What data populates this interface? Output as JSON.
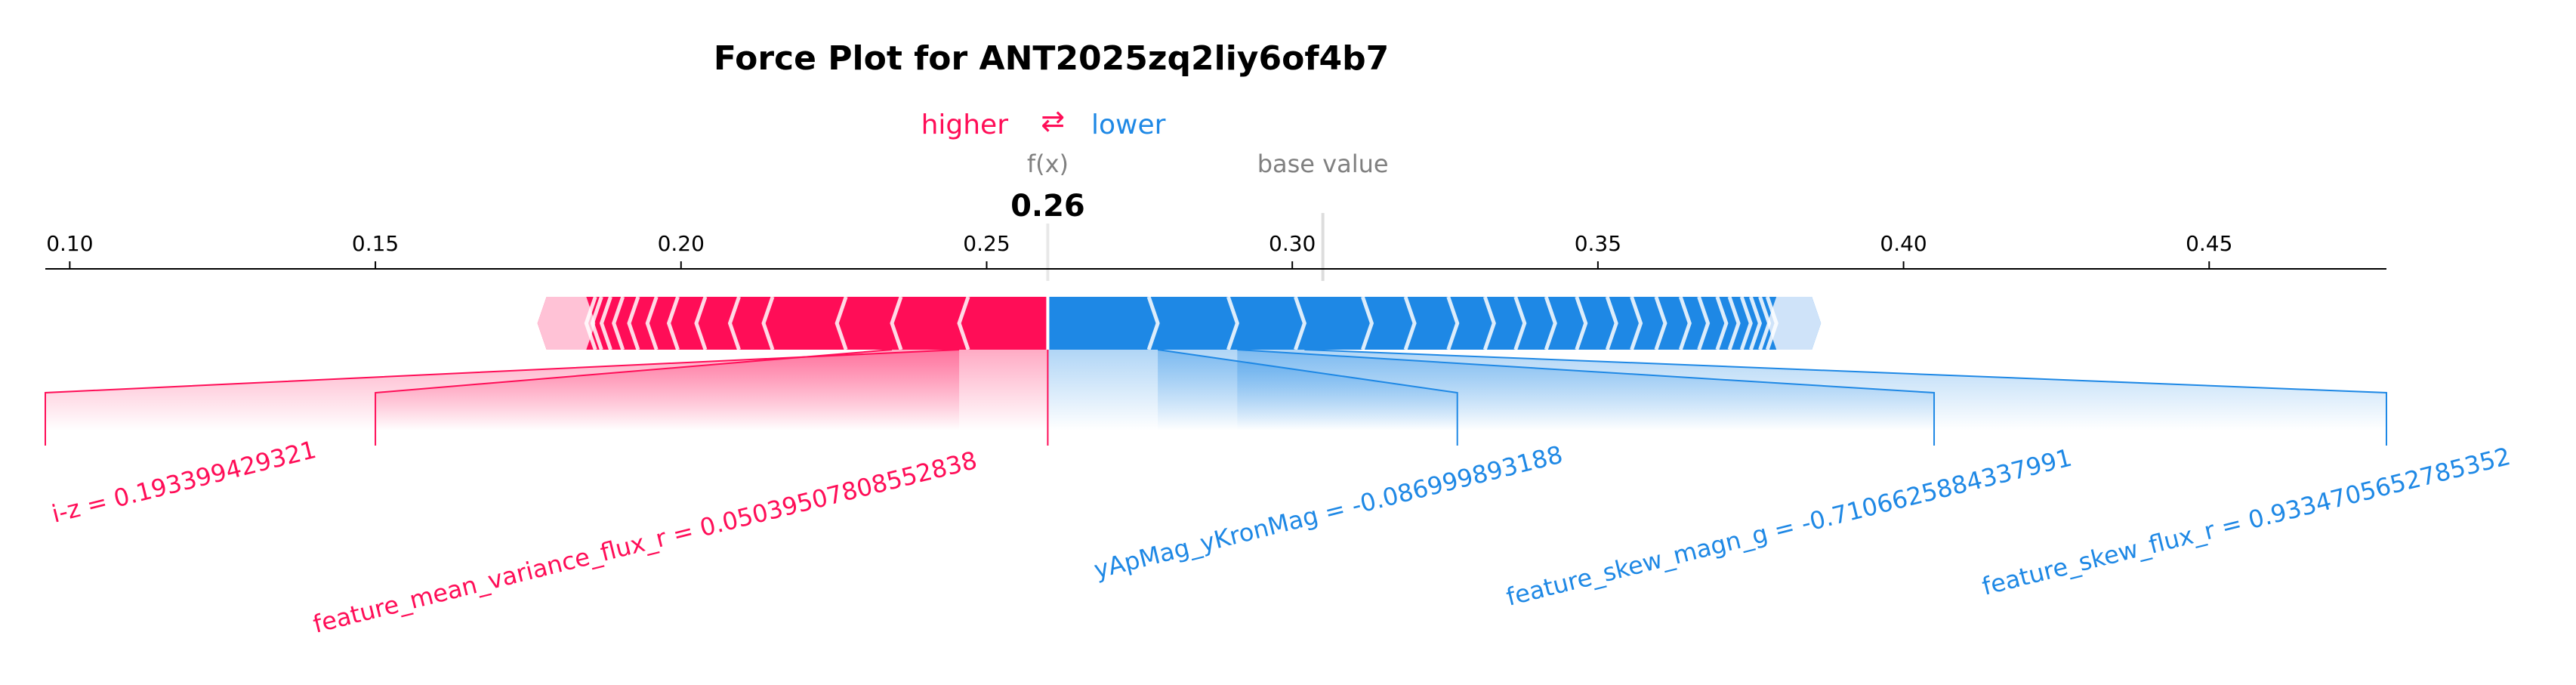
{
  "chart_data": {
    "type": "force",
    "title": "Force Plot for ANT2025zq2liy6of4b7",
    "legend": {
      "higher": "higher",
      "arrows": "⇄",
      "lower": "lower",
      "placement": "top-center"
    },
    "fx_label": "f(x)",
    "fx_value": 0.26,
    "fx_value_text": "0.26",
    "base_label": "base value",
    "base_value": 0.305,
    "xlim": [
      0.096,
      0.479
    ],
    "ticks": [
      {
        "value": 0.1,
        "label": "0.10"
      },
      {
        "value": 0.15,
        "label": "0.15"
      },
      {
        "value": 0.2,
        "label": "0.20"
      },
      {
        "value": 0.25,
        "label": "0.25"
      },
      {
        "value": 0.3,
        "label": "0.30"
      },
      {
        "value": 0.35,
        "label": "0.35"
      },
      {
        "value": 0.4,
        "label": "0.40"
      },
      {
        "value": 0.45,
        "label": "0.45"
      }
    ],
    "positive_bar_range": [
      0.178,
      0.26
    ],
    "negative_bar_range": [
      0.26,
      0.385
    ],
    "positive_boundaries": [
      0.2455,
      0.2345,
      0.2255,
      0.2135,
      0.208,
      0.2025,
      0.198,
      0.1945,
      0.1915,
      0.189,
      0.187,
      0.1855,
      0.1845
    ],
    "negative_boundaries": [
      0.278,
      0.291,
      0.302,
      0.313,
      0.32,
      0.327,
      0.333,
      0.338,
      0.343,
      0.348,
      0.353,
      0.357,
      0.361,
      0.365,
      0.368,
      0.371,
      0.373,
      0.375,
      0.3765,
      0.378,
      0.3792
    ],
    "features_positive": [
      {
        "label": "i-z = 0.193399429321",
        "seg": [
          0.2455,
          0.26
        ],
        "anchor": 0.096
      },
      {
        "label": "feature_mean_variance_flux_r = 0.050395078085528​38",
        "seg": [
          0.2345,
          0.2455
        ],
        "anchor": 0.15
      }
    ],
    "features_negative": [
      {
        "label": "yApMag_yKronMag = -0.086999893188",
        "seg": [
          0.26,
          0.278
        ],
        "anchor": 0.327
      },
      {
        "label": "feature_skew_magn_g = -0.7106625884337991",
        "seg": [
          0.278,
          0.291
        ],
        "anchor": 0.405
      },
      {
        "label": "feature_skew_flux_r = 0.9334705652785352",
        "seg": [
          0.291,
          0.302
        ],
        "anchor": 0.479
      }
    ]
  }
}
